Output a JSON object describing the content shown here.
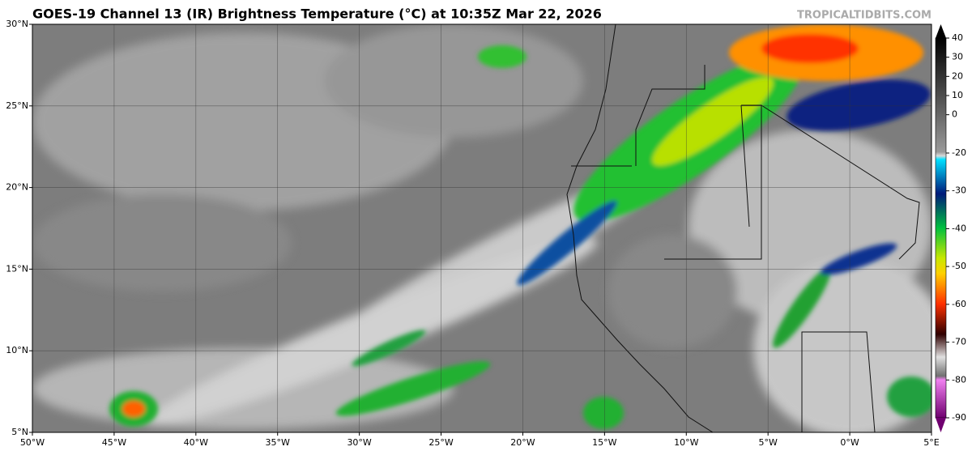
{
  "title": "GOES-19 Channel 13 (IR) Brightness Temperature (°C) at 10:35Z Mar 22, 2026",
  "watermark": "TROPICALTIDBITS.COM",
  "map": {
    "lonlim": [
      -50,
      5
    ],
    "latlim": [
      5,
      30
    ],
    "xticks": [
      {
        "value": -50,
        "label": "50°W"
      },
      {
        "value": -45,
        "label": "45°W"
      },
      {
        "value": -40,
        "label": "40°W"
      },
      {
        "value": -35,
        "label": "35°W"
      },
      {
        "value": -30,
        "label": "30°W"
      },
      {
        "value": -25,
        "label": "25°W"
      },
      {
        "value": -20,
        "label": "20°W"
      },
      {
        "value": -15,
        "label": "15°W"
      },
      {
        "value": -10,
        "label": "10°W"
      },
      {
        "value": -5,
        "label": "5°W"
      },
      {
        "value": 0,
        "label": "0°W"
      },
      {
        "value": 5,
        "label": "5°E"
      }
    ],
    "yticks": [
      {
        "value": 5,
        "label": "5°N"
      },
      {
        "value": 10,
        "label": "10°N"
      },
      {
        "value": 15,
        "label": "15°N"
      },
      {
        "value": 20,
        "label": "20°N"
      },
      {
        "value": 25,
        "label": "25°N"
      },
      {
        "value": 30,
        "label": "30°N"
      }
    ]
  },
  "colorbar": {
    "ticks": [
      40,
      30,
      20,
      10,
      0,
      -20,
      -30,
      -40,
      -50,
      -60,
      -70,
      -80,
      -90
    ]
  }
}
